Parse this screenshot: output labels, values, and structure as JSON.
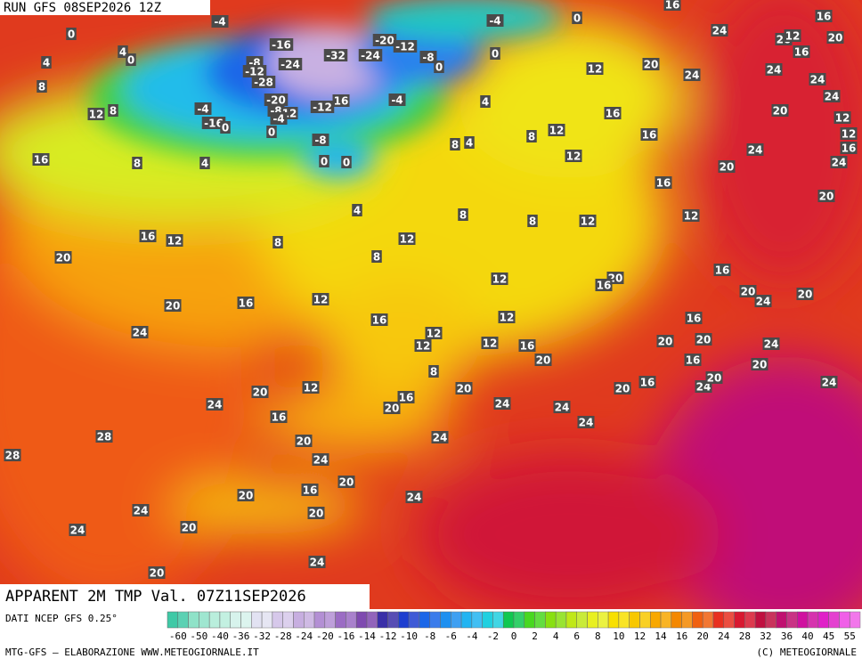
{
  "header": {
    "run": "RUN GFS 08SEP2026 12Z"
  },
  "title": "APPARENT 2M TMP Val. 07Z11SEP2026",
  "source": "DATI NCEP GFS 0.25°",
  "footer": {
    "left": "MTG-GFS — ELABORAZIONE WWW.METEOGIORNALE.IT",
    "right": "(C) METEOGIORNALE"
  },
  "scale": {
    "labels": [
      -60,
      -50,
      -40,
      -36,
      -32,
      -28,
      -24,
      -20,
      -16,
      -14,
      -12,
      -10,
      -8,
      -6,
      -4,
      -2,
      0,
      2,
      4,
      6,
      8,
      10,
      12,
      14,
      16,
      20,
      24,
      28,
      32,
      36,
      40,
      45,
      55
    ],
    "colors": [
      "#3fc9a6",
      "#8fe2c8",
      "#b9eedc",
      "#d7f3ec",
      "#e2e2f2",
      "#d6c8ea",
      "#c7aee0",
      "#b38fd4",
      "#9b6cc4",
      "#7f4ab0",
      "#3a2fa8",
      "#1e3ed0",
      "#1a66e8",
      "#1e90f0",
      "#22b4f2",
      "#20d0e0",
      "#10c850",
      "#48d820",
      "#88e010",
      "#c0e818",
      "#e8f020",
      "#f8e000",
      "#f8c800",
      "#f8a800",
      "#f48800",
      "#f06010",
      "#e83020",
      "#d81830",
      "#c01040",
      "#c01070",
      "#d010a0",
      "#e020c8",
      "#f060e8"
    ]
  },
  "map_labels": [
    -4,
    -4,
    0,
    0,
    4,
    0,
    4,
    -16,
    -20,
    -12,
    -32,
    -8,
    -24,
    -24,
    -8,
    0,
    0,
    12,
    20,
    24,
    8,
    -28,
    -12,
    -20,
    16,
    -12,
    -4,
    4,
    -4,
    -8,
    12,
    -4,
    12,
    8,
    -16,
    0,
    0,
    -8,
    16,
    12,
    8,
    8,
    4,
    16,
    16,
    8,
    4,
    0,
    0,
    12,
    20,
    24,
    16,
    4,
    8,
    8,
    12,
    12,
    16,
    12,
    8,
    12,
    8,
    20,
    20,
    16,
    16,
    12,
    12,
    16,
    20,
    20,
    24,
    20,
    16,
    12,
    16,
    24,
    12,
    12,
    12,
    16,
    20,
    20,
    24,
    20,
    16,
    8,
    12,
    20,
    20,
    20,
    16,
    24,
    20,
    20,
    24,
    24,
    16,
    20,
    24,
    24,
    16,
    24,
    28,
    24,
    20,
    28,
    24,
    20,
    16,
    20,
    24,
    24,
    20,
    24,
    20,
    24,
    20,
    16,
    24,
    16,
    20,
    12,
    20,
    16,
    24,
    24,
    24,
    20,
    12,
    12,
    16,
    24,
    20
  ]
}
